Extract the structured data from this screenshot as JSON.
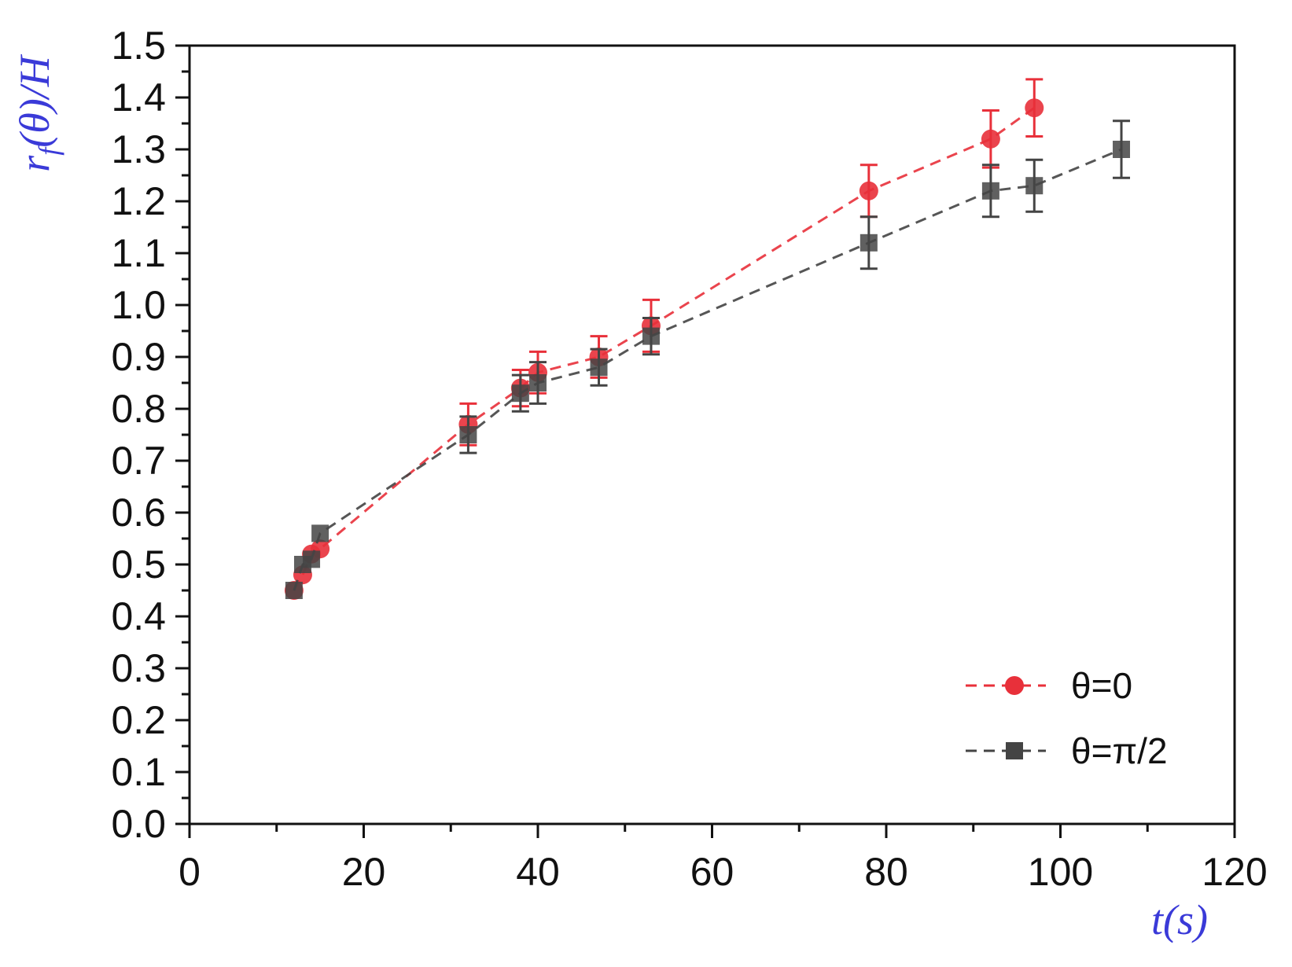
{
  "chart_data": {
    "type": "scatter",
    "xlabel": "t(s)",
    "ylabel": "r_f(θ)/H",
    "ylabel_main": "r",
    "ylabel_sub": "f",
    "ylabel_rest": "(θ)/H",
    "xlim": [
      0,
      120
    ],
    "ylim": [
      0.0,
      1.5
    ],
    "x_ticks": [
      0,
      20,
      40,
      60,
      80,
      100,
      120
    ],
    "y_ticks": [
      0.0,
      0.1,
      0.2,
      0.3,
      0.4,
      0.5,
      0.6,
      0.7,
      0.8,
      0.9,
      1.0,
      1.1,
      1.2,
      1.3,
      1.4,
      1.5
    ],
    "x_tick_labels": [
      "0",
      "20",
      "40",
      "60",
      "80",
      "100",
      "120"
    ],
    "y_tick_labels": [
      "0.0",
      "0.1",
      "0.2",
      "0.3",
      "0.4",
      "0.5",
      "0.6",
      "0.7",
      "0.8",
      "0.9",
      "1.0",
      "1.1",
      "1.2",
      "1.3",
      "1.4",
      "1.5"
    ],
    "grid": false,
    "legend_position": "bottom-right",
    "series": [
      {
        "name": "θ=0",
        "marker": "circle",
        "line": "dashed",
        "color": "#e8303a",
        "points": [
          {
            "x": 12,
            "y": 0.45,
            "err": 0.0
          },
          {
            "x": 13,
            "y": 0.48,
            "err": 0.0
          },
          {
            "x": 14,
            "y": 0.52,
            "err": 0.0
          },
          {
            "x": 15,
            "y": 0.53,
            "err": 0.0
          },
          {
            "x": 32,
            "y": 0.77,
            "err": 0.04
          },
          {
            "x": 38,
            "y": 0.84,
            "err": 0.035
          },
          {
            "x": 40,
            "y": 0.87,
            "err": 0.04
          },
          {
            "x": 47,
            "y": 0.9,
            "err": 0.04
          },
          {
            "x": 53,
            "y": 0.96,
            "err": 0.05
          },
          {
            "x": 78,
            "y": 1.22,
            "err": 0.05
          },
          {
            "x": 92,
            "y": 1.32,
            "err": 0.055
          },
          {
            "x": 97,
            "y": 1.38,
            "err": 0.055
          }
        ]
      },
      {
        "name": "θ=π/2",
        "marker": "square",
        "line": "dashed",
        "color": "#444444",
        "points": [
          {
            "x": 12,
            "y": 0.45,
            "err": 0.0
          },
          {
            "x": 13,
            "y": 0.5,
            "err": 0.0
          },
          {
            "x": 14,
            "y": 0.51,
            "err": 0.0
          },
          {
            "x": 15,
            "y": 0.56,
            "err": 0.0
          },
          {
            "x": 32,
            "y": 0.75,
            "err": 0.035
          },
          {
            "x": 38,
            "y": 0.83,
            "err": 0.035
          },
          {
            "x": 40,
            "y": 0.85,
            "err": 0.04
          },
          {
            "x": 47,
            "y": 0.88,
            "err": 0.035
          },
          {
            "x": 53,
            "y": 0.94,
            "err": 0.035
          },
          {
            "x": 78,
            "y": 1.12,
            "err": 0.05
          },
          {
            "x": 92,
            "y": 1.22,
            "err": 0.05
          },
          {
            "x": 97,
            "y": 1.23,
            "err": 0.05
          },
          {
            "x": 107,
            "y": 1.3,
            "err": 0.055
          }
        ]
      }
    ]
  }
}
